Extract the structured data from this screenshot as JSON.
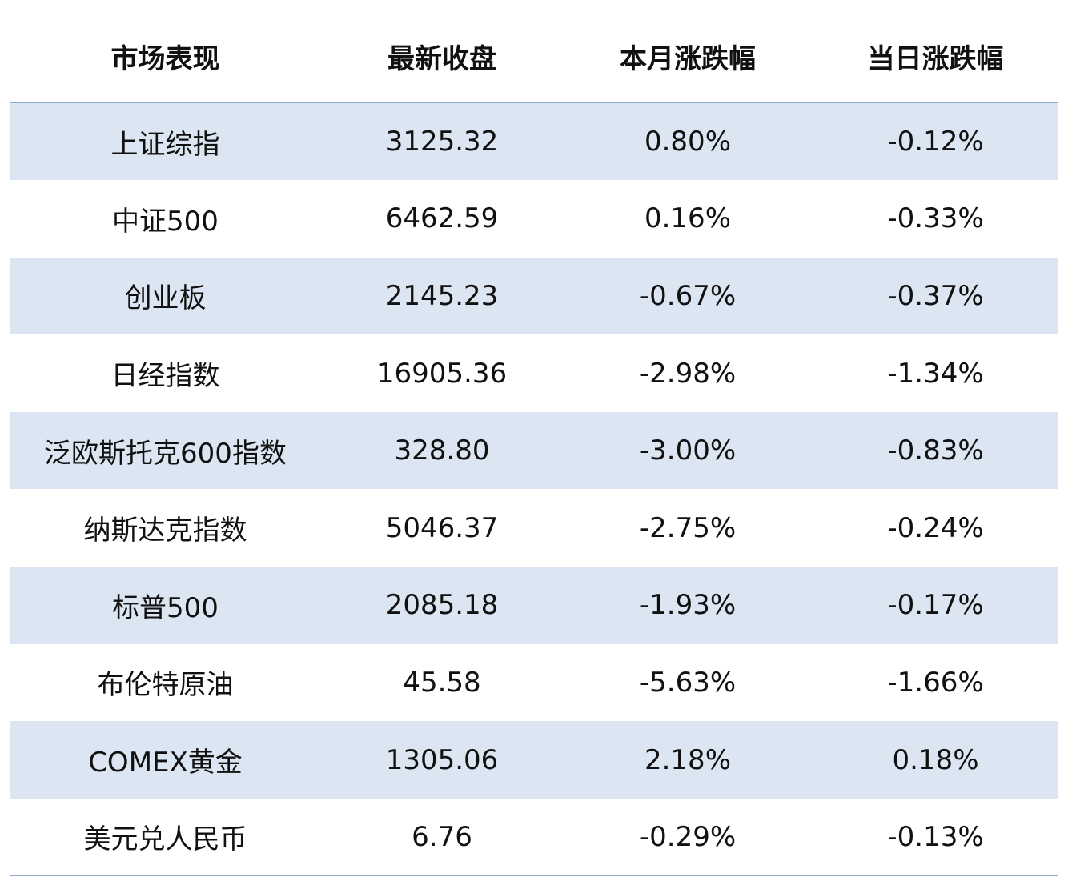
{
  "table": {
    "headers": [
      "市场表现",
      "最新收盘",
      "本月涨跌幅",
      "当日涨跌幅"
    ],
    "rows": [
      [
        "上证综指",
        "3125.32",
        "0.80%",
        "-0.12%"
      ],
      [
        "中证500",
        "6462.59",
        "0.16%",
        "-0.33%"
      ],
      [
        "创业板",
        "2145.23",
        "-0.67%",
        "-0.37%"
      ],
      [
        "日经指数",
        "16905.36",
        "-2.98%",
        "-1.34%"
      ],
      [
        "泛欧斯托克600指数",
        "328.80",
        "-3.00%",
        "-0.83%"
      ],
      [
        "纳斯达克指数",
        "5046.37",
        "-2.75%",
        "-0.24%"
      ],
      [
        "标普500",
        "2085.18",
        "-1.93%",
        "-0.17%"
      ],
      [
        "布伦特原油",
        "45.58",
        "-5.63%",
        "-1.66%"
      ],
      [
        "COMEX黄金",
        "1305.06",
        "2.18%",
        "0.18%"
      ],
      [
        "美元兑人民币",
        "6.76",
        "-0.29%",
        "-0.13%"
      ]
    ]
  },
  "colors": {
    "shaded_row": "#dce6f2",
    "rule_line": "#8fa9cf"
  }
}
